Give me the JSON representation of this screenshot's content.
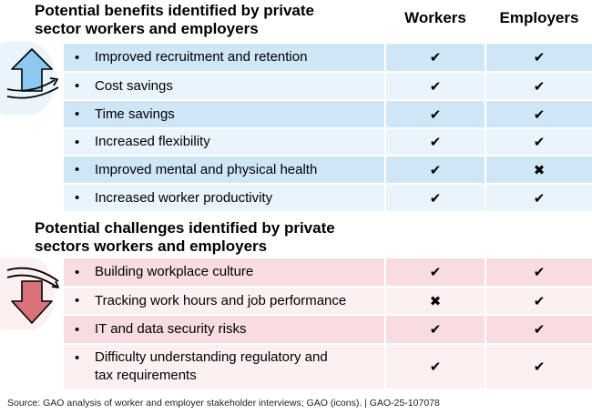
{
  "headers": {
    "benefits_title": "Potential benefits identified by private\nsector workers and employers",
    "challenges_title": "Potential challenges identified by private\nsectors workers and employers",
    "workers": "Workers",
    "employers": "Employers"
  },
  "benefits": [
    {
      "label": "Improved recruitment and retention",
      "workers": "✔",
      "employers": "✔"
    },
    {
      "label": "Cost savings",
      "workers": "✔",
      "employers": "✔"
    },
    {
      "label": "Time savings",
      "workers": "✔",
      "employers": "✔"
    },
    {
      "label": "Increased flexibility",
      "workers": "✔",
      "employers": "✔"
    },
    {
      "label": "Improved mental and physical health",
      "workers": "✔",
      "employers": "✖"
    },
    {
      "label": "Increased worker productivity",
      "workers": "✔",
      "employers": "✔"
    }
  ],
  "challenges": [
    {
      "label": "Building workplace culture",
      "workers": "✔",
      "employers": "✔"
    },
    {
      "label": "Tracking work hours and job performance",
      "workers": "✖",
      "employers": "✔"
    },
    {
      "label": "IT and data security risks",
      "workers": "✔",
      "employers": "✔"
    },
    {
      "label": "Difficulty understanding regulatory and\ntax requirements",
      "workers": "✔",
      "employers": "✔"
    }
  ],
  "bullet": "•",
  "icons": {
    "benefits": "up-arrow-icon",
    "challenges": "down-arrow-icon"
  },
  "colors": {
    "benefit_dark": "#cfe6f7",
    "benefit_light": "#e9f4fc",
    "challenge_dark": "#f7dde0",
    "challenge_light": "#fcf0f1",
    "up_arrow": "#8cc8ef",
    "down_arrow": "#d9727a"
  },
  "source": "Source: GAO analysis of worker and employer stakeholder interviews; GAO (icons).  |  GAO-25-107078"
}
